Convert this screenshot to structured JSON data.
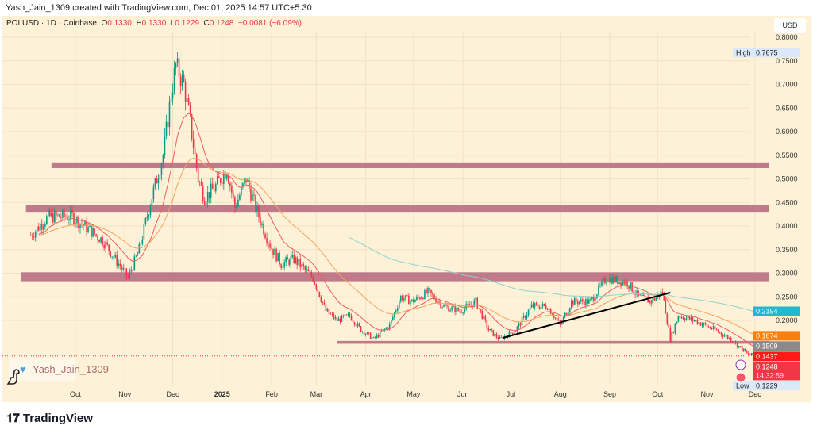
{
  "credit": "Yash_Jain_1309 created with TradingView.com, Dec 01, 2025 14:57 UTC+5:30",
  "legend": {
    "symbol": "POLUSD · 1D · Coinbase",
    "o_label": "O",
    "o": "0.1330",
    "h_label": "H",
    "h": "0.1330",
    "l_label": "L",
    "l": "0.1229",
    "c_label": "C",
    "c": "0.1248",
    "change": "−0.0081 (−6.09%)"
  },
  "currency": "USD",
  "watermark": "Yash_Jain_1309",
  "brand": "TradingView",
  "colors": {
    "background": "#fdf1d7",
    "up": "#089981",
    "down": "#f23645",
    "ema_short": "#f25c5c",
    "ema_mid": "#f7a35c",
    "ema_long": "#8fd3cf",
    "zone": "#b5667e",
    "trendline": "#000000"
  },
  "chart_data": {
    "type": "candlestick",
    "interval": "1D",
    "ylim": [
      0.1,
      0.82
    ],
    "y_ticks": [
      "0.8000",
      "0.7500",
      "0.7000",
      "0.6500",
      "0.6000",
      "0.5500",
      "0.5000",
      "0.4500",
      "0.4000",
      "0.3500",
      "0.3000",
      "0.2500",
      "0.2000"
    ],
    "x_ticks": [
      {
        "label": "Oct",
        "date": "2024-10-01"
      },
      {
        "label": "Nov",
        "date": "2024-11-01"
      },
      {
        "label": "Dec",
        "date": "2024-12-01"
      },
      {
        "label": "2025",
        "date": "2025-01-01"
      },
      {
        "label": "Feb",
        "date": "2025-02-01"
      },
      {
        "label": "Mar",
        "date": "2025-03-01"
      },
      {
        "label": "Apr",
        "date": "2025-04-01"
      },
      {
        "label": "May",
        "date": "2025-05-01"
      },
      {
        "label": "Jun",
        "date": "2025-06-01"
      },
      {
        "label": "Jul",
        "date": "2025-07-01"
      },
      {
        "label": "Aug",
        "date": "2025-08-01"
      },
      {
        "label": "Sep",
        "date": "2025-09-01"
      },
      {
        "label": "Oct",
        "date": "2025-10-01"
      },
      {
        "label": "Nov",
        "date": "2025-11-01"
      },
      {
        "label": "Dec",
        "date": "2025-12-01"
      }
    ],
    "close_path": [
      [
        "2024-09-03",
        0.38
      ],
      [
        "2024-09-14",
        0.42
      ],
      [
        "2024-09-29",
        0.42
      ],
      [
        "2024-10-18",
        0.37
      ],
      [
        "2024-10-28",
        0.32
      ],
      [
        "2024-11-03",
        0.29
      ],
      [
        "2024-11-10",
        0.35
      ],
      [
        "2024-11-17",
        0.45
      ],
      [
        "2024-11-25",
        0.55
      ],
      [
        "2024-11-30",
        0.68
      ],
      [
        "2024-12-03",
        0.74
      ],
      [
        "2024-12-08",
        0.7
      ],
      [
        "2024-12-12",
        0.62
      ],
      [
        "2024-12-17",
        0.5
      ],
      [
        "2024-12-21",
        0.46
      ],
      [
        "2024-12-27",
        0.48
      ],
      [
        "2025-01-04",
        0.52
      ],
      [
        "2025-01-09",
        0.44
      ],
      [
        "2025-01-16",
        0.5
      ],
      [
        "2025-01-24",
        0.42
      ],
      [
        "2025-01-31",
        0.36
      ],
      [
        "2025-02-07",
        0.32
      ],
      [
        "2025-02-15",
        0.33
      ],
      [
        "2025-02-27",
        0.29
      ],
      [
        "2025-03-07",
        0.22
      ],
      [
        "2025-03-14",
        0.2
      ],
      [
        "2025-03-22",
        0.21
      ],
      [
        "2025-03-29",
        0.18
      ],
      [
        "2025-04-06",
        0.16
      ],
      [
        "2025-04-16",
        0.19
      ],
      [
        "2025-04-23",
        0.25
      ],
      [
        "2025-04-30",
        0.24
      ],
      [
        "2025-05-10",
        0.26
      ],
      [
        "2025-05-20",
        0.23
      ],
      [
        "2025-05-30",
        0.22
      ],
      [
        "2025-06-09",
        0.24
      ],
      [
        "2025-06-17",
        0.18
      ],
      [
        "2025-06-24",
        0.16
      ],
      [
        "2025-07-04",
        0.18
      ],
      [
        "2025-07-14",
        0.23
      ],
      [
        "2025-07-24",
        0.23
      ],
      [
        "2025-08-01",
        0.19
      ],
      [
        "2025-08-08",
        0.24
      ],
      [
        "2025-08-20",
        0.24
      ],
      [
        "2025-08-30",
        0.29
      ],
      [
        "2025-09-12",
        0.28
      ],
      [
        "2025-09-19",
        0.25
      ],
      [
        "2025-09-27",
        0.24
      ],
      [
        "2025-10-04",
        0.26
      ],
      [
        "2025-10-09",
        0.16
      ],
      [
        "2025-10-14",
        0.21
      ],
      [
        "2025-10-24",
        0.2
      ],
      [
        "2025-11-06",
        0.18
      ],
      [
        "2025-11-16",
        0.16
      ],
      [
        "2025-11-26",
        0.13
      ],
      [
        "2025-12-01",
        0.1248
      ]
    ],
    "zones": [
      {
        "from": 0.5227,
        "to": 0.5347,
        "start": "2024-09-16"
      },
      {
        "from": 0.43,
        "to": 0.445,
        "start": "2024-08-31"
      },
      {
        "from": 0.283,
        "to": 0.302,
        "start": "2024-08-28"
      },
      {
        "from": 0.1505,
        "to": 0.1565,
        "start": "2025-03-14"
      }
    ],
    "trendline": {
      "from": [
        "2025-06-26",
        0.163
      ],
      "to": [
        "2025-10-09",
        0.259
      ]
    },
    "moving_averages": [
      {
        "period": 20,
        "color_key": "ema_short"
      },
      {
        "period": 50,
        "color_key": "ema_mid"
      },
      {
        "period": 200,
        "color_key": "ema_long"
      }
    ],
    "price_labels": [
      {
        "text": "0.2194",
        "price": 0.2194,
        "bg": "#22b8cf"
      },
      {
        "text": "0.1674",
        "price": 0.1674,
        "bg": "#ff7f0e"
      },
      {
        "text": "0.1509",
        "price": 0.1509,
        "bg": "#8a8a8a"
      },
      {
        "text": "0.1437",
        "price": 0.1437,
        "bg": "#ff1a1a"
      }
    ],
    "last": {
      "price": "0.1248",
      "timer": "14:32:59"
    },
    "high": {
      "label": "High",
      "price": "0.7675"
    },
    "low": {
      "label": "Low",
      "price": "0.1229"
    }
  }
}
